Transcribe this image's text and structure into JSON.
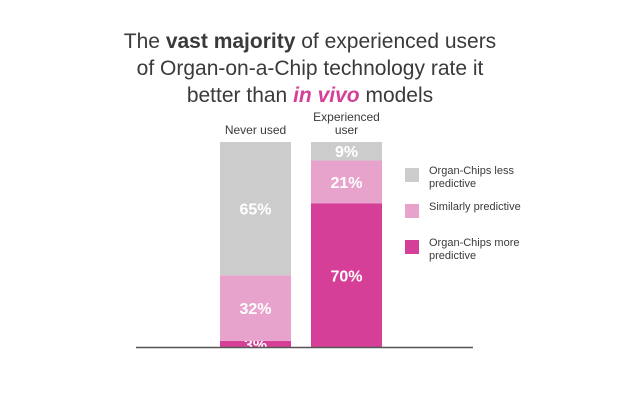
{
  "title": {
    "part1": "The",
    "emph1": "vast majority",
    "part2": "of experienced users",
    "part3": "of Organ-on-a-Chip technology rate it",
    "part4": "better than",
    "emph2": "in vivo",
    "part5": "models"
  },
  "legend": [
    {
      "label": "Organ-Chips less predictive",
      "color": "#cccccc"
    },
    {
      "label": "Similarly predictive",
      "color": "#e8a3cc"
    },
    {
      "label": "Organ-Chips more predictive",
      "color": "#d63f97"
    }
  ],
  "chart_data": {
    "type": "bar",
    "stacked": true,
    "categories": [
      "Never used",
      "Experienced user"
    ],
    "series": [
      {
        "name": "Organ-Chips more predictive",
        "values": [
          3,
          70
        ],
        "labels": [
          "3%",
          "70%"
        ],
        "color": "#d63f97"
      },
      {
        "name": "Similarly predictive",
        "values": [
          32,
          21
        ],
        "labels": [
          "32%",
          "21%"
        ],
        "color": "#e8a3cc"
      },
      {
        "name": "Organ-Chips less predictive",
        "values": [
          65,
          9
        ],
        "labels": [
          "65%",
          "9%"
        ],
        "color": "#cccccc"
      }
    ],
    "ylim": [
      0,
      100
    ],
    "grid": false,
    "legend_position": "right"
  }
}
